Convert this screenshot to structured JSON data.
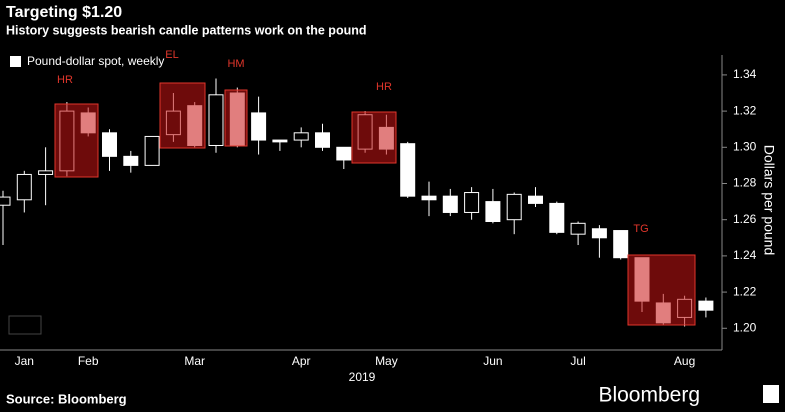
{
  "chart_data": {
    "type": "candlestick",
    "title": "Targeting $1.20",
    "subtitle": "History suggests bearish candle patterns work on the pound",
    "legend": "Pound-dollar spot, weekly",
    "y_label": "Dollars per pound",
    "x_label": "2019",
    "source": "Source: Bloomberg",
    "brand": "Bloomberg",
    "annotations": [
      "HR",
      "EL",
      "HM",
      "HR",
      "TG"
    ],
    "categories": [
      null,
      "Jan",
      null,
      null,
      "Feb",
      null,
      null,
      null,
      null,
      "Mar",
      null,
      null,
      null,
      null,
      "Apr",
      null,
      null,
      null,
      "May",
      null,
      null,
      null,
      null,
      "Jun",
      null,
      null,
      null,
      "Jul",
      null,
      null,
      null,
      null,
      "Aug",
      null
    ],
    "open": [
      1.268,
      1.271,
      1.285,
      1.287,
      1.319,
      1.308,
      1.295,
      1.29,
      1.307,
      1.323,
      1.301,
      1.33,
      1.319,
      1.304,
      1.304,
      1.308,
      1.3,
      1.299,
      1.311,
      1.302,
      1.273,
      1.273,
      1.264,
      1.27,
      1.26,
      1.273,
      1.269,
      1.252,
      1.255,
      1.254,
      1.239,
      1.214,
      1.206,
      1.215
    ],
    "high": [
      1.276,
      1.287,
      1.3,
      1.325,
      1.322,
      1.31,
      1.298,
      1.306,
      1.33,
      1.325,
      1.338,
      1.333,
      1.328,
      1.304,
      1.311,
      1.313,
      1.3,
      1.32,
      1.318,
      1.303,
      1.281,
      1.277,
      1.278,
      1.277,
      1.275,
      1.278,
      1.27,
      1.259,
      1.257,
      1.254,
      1.239,
      1.219,
      1.218,
      1.217
    ],
    "low": [
      1.246,
      1.264,
      1.268,
      1.284,
      1.306,
      1.287,
      1.286,
      1.29,
      1.303,
      1.3,
      1.297,
      1.3,
      1.296,
      1.298,
      1.3,
      1.298,
      1.288,
      1.297,
      1.296,
      1.272,
      1.262,
      1.262,
      1.26,
      1.258,
      1.252,
      1.267,
      1.252,
      1.246,
      1.239,
      1.238,
      1.209,
      1.202,
      1.201,
      1.206
    ],
    "close": [
      1.2725,
      1.285,
      1.287,
      1.32,
      1.308,
      1.295,
      1.29,
      1.306,
      1.32,
      1.301,
      1.329,
      1.301,
      1.304,
      1.303,
      1.308,
      1.3,
      1.293,
      1.318,
      1.299,
      1.273,
      1.271,
      1.264,
      1.275,
      1.259,
      1.274,
      1.269,
      1.253,
      1.258,
      1.25,
      1.239,
      1.215,
      1.203,
      1.216,
      1.21
    ],
    "color": "#ffffff",
    "ylim": [
      1.188,
      1.351
    ],
    "yticks": [
      {
        "value": 1.2,
        "label": "1.20"
      },
      {
        "value": 1.22,
        "label": "1.22"
      },
      {
        "value": 1.24,
        "label": "1.24"
      },
      {
        "value": 1.26,
        "label": "1.26"
      },
      {
        "value": 1.28,
        "label": "1.28"
      },
      {
        "value": 1.3,
        "label": "1.30"
      },
      {
        "value": 1.32,
        "label": "1.32"
      },
      {
        "value": 1.34,
        "label": "1.34"
      }
    ]
  }
}
